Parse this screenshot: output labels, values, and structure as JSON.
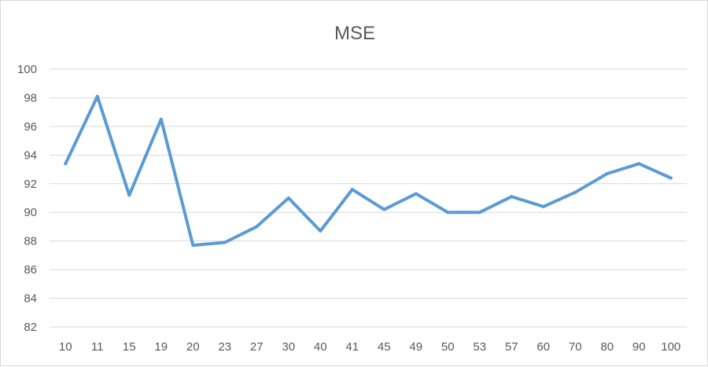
{
  "chart_data": {
    "type": "line",
    "title": "MSE",
    "xlabel": "",
    "ylabel": "",
    "categories": [
      "10",
      "11",
      "15",
      "19",
      "20",
      "23",
      "27",
      "30",
      "40",
      "41",
      "45",
      "49",
      "50",
      "53",
      "57",
      "60",
      "70",
      "80",
      "90",
      "100"
    ],
    "series": [
      {
        "values": [
          93.4,
          98.1,
          91.2,
          96.5,
          87.7,
          87.9,
          89.0,
          91.0,
          88.7,
          91.6,
          90.2,
          91.3,
          90.0,
          90.0,
          91.1,
          90.4,
          91.4,
          92.7,
          93.4,
          92.4
        ]
      }
    ],
    "ylim": [
      82,
      100
    ],
    "yticks": [
      "82",
      "84",
      "86",
      "88",
      "90",
      "92",
      "94",
      "96",
      "98",
      "100"
    ],
    "grid": true,
    "legend": "none",
    "colors": {
      "line": "#5b9bd5",
      "grid": "#d9d9d9",
      "text": "#595959"
    }
  }
}
